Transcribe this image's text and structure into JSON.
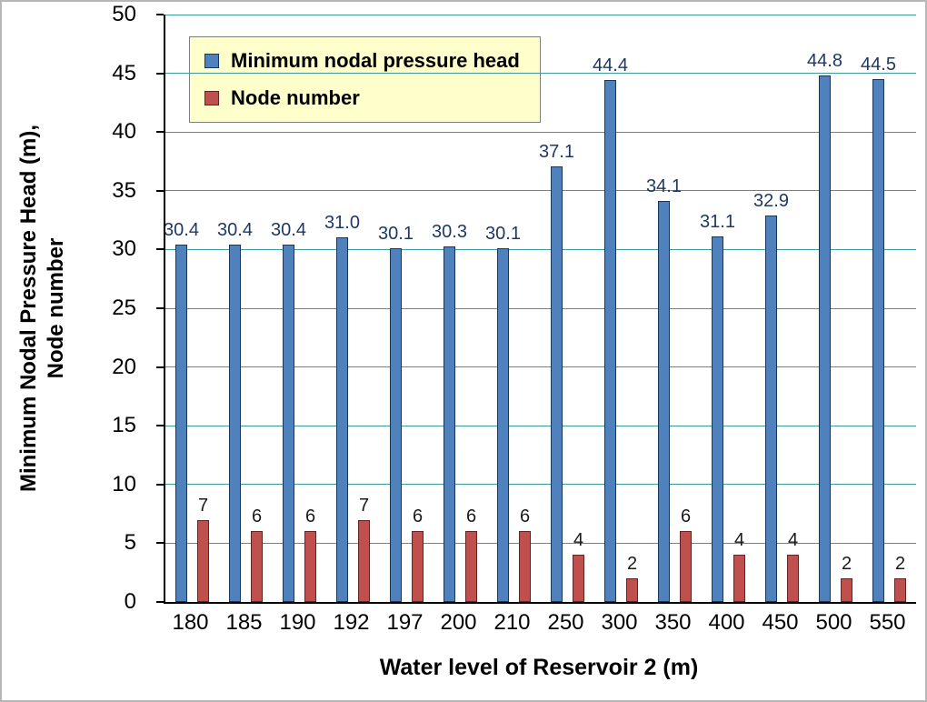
{
  "chart_data": {
    "type": "bar",
    "title": "",
    "xlabel": "Water level of Reservoir 2 (m)",
    "ylabel_line1": "Minimum Nodal Pressure Head (m),",
    "ylabel_line2": "Node number",
    "categories": [
      "180",
      "185",
      "190",
      "192",
      "197",
      "200",
      "210",
      "250",
      "300",
      "350",
      "400",
      "450",
      "500",
      "550"
    ],
    "series": [
      {
        "name": "Minimum nodal pressure head",
        "color": "#4F81BD",
        "border_color": "#17375E",
        "label_color": "#1F3864",
        "values": [
          30.4,
          30.4,
          30.4,
          31.0,
          30.1,
          30.3,
          30.1,
          37.1,
          44.4,
          34.1,
          31.1,
          32.9,
          44.8,
          44.5
        ],
        "labels": [
          "30.4",
          "30.4",
          "30.4",
          "31.0",
          "30.1",
          "30.3",
          "30.1",
          "37.1",
          "44.4",
          "34.1",
          "31.1",
          "32.9",
          "44.8",
          "44.5"
        ]
      },
      {
        "name": "Node number",
        "color": "#C0504D",
        "border_color": "#622423",
        "label_color": "#1a1a1a",
        "values": [
          7,
          6,
          6,
          7,
          6,
          6,
          6,
          4,
          2,
          6,
          4,
          4,
          2,
          2
        ],
        "labels": [
          "7",
          "6",
          "6",
          "7",
          "6",
          "6",
          "6",
          "4",
          "2",
          "6",
          "4",
          "4",
          "2",
          "2"
        ]
      }
    ],
    "ylim": [
      0,
      50
    ],
    "ytick_step": 5,
    "yticks": [
      "0",
      "5",
      "10",
      "15",
      "20",
      "25",
      "30",
      "35",
      "40",
      "45",
      "50"
    ],
    "grid": true,
    "gridline_color": "#3D9B9B",
    "legend_position": "top-left",
    "legend_bg": "#FFFFCC"
  }
}
